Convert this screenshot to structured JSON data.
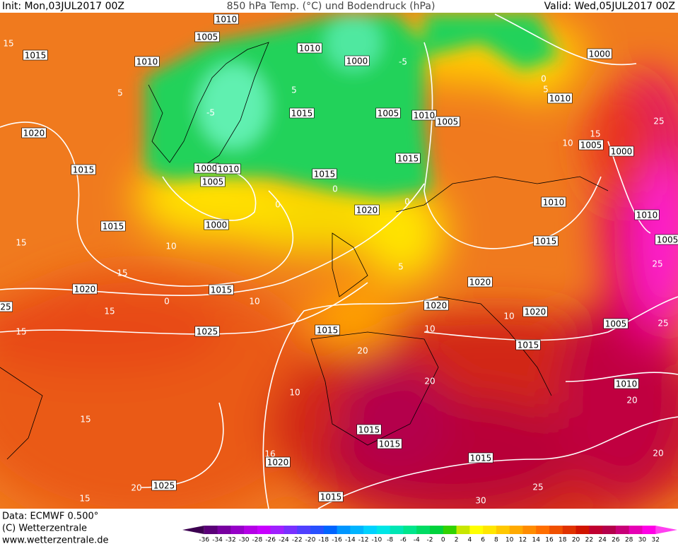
{
  "header": {
    "init": "Init: Mon,03JUL2017 00Z",
    "title": "850 hPa Temp. (°C) und Bodendruck (hPa)",
    "valid": "Valid: Wed,05JUL2017 00Z"
  },
  "footer": {
    "data": "Data: ECMWF  0.500°",
    "copyright": "(C) Wetterzentrale",
    "website": "www.wetterzentrale.de"
  },
  "isobar_labels": [
    "1010",
    "1005",
    "1015",
    "1010",
    "1010",
    "1000",
    "1000",
    "1010",
    "1020",
    "1015",
    "1005",
    "1010",
    "1005",
    "1005",
    "1000",
    "1015",
    "1000",
    "1010",
    "1005",
    "1015",
    "1015",
    "1010",
    "1020",
    "1015",
    "1000",
    "1010",
    "1005",
    "1015",
    "1020",
    "1015",
    "1020",
    "1020",
    "1020",
    "25",
    "1005",
    "1025",
    "1015",
    "1015",
    "1010",
    "1015",
    "1015",
    "1015",
    "1020",
    "1025",
    "1015"
  ],
  "isotherm_labels": [
    "15",
    "5",
    "-5",
    "5",
    "0",
    "5",
    "-5",
    "15",
    "10",
    "25",
    "0",
    "0",
    "0",
    "10",
    "15",
    "15",
    "0",
    "15",
    "15",
    "10",
    "5",
    "10",
    "20",
    "20",
    "20",
    "15",
    "16",
    "20",
    "15",
    "25",
    "30",
    "20",
    "25",
    "25",
    "10",
    "10"
  ],
  "colorbar": {
    "labels": [
      "-36",
      "-34",
      "-32",
      "-30",
      "-28",
      "-26",
      "-24",
      "-22",
      "-20",
      "-18",
      "-16",
      "-14",
      "-12",
      "-10",
      "-8",
      "-6",
      "-4",
      "-2",
      "0",
      "2",
      "4",
      "6",
      "8",
      "10",
      "12",
      "14",
      "16",
      "18",
      "20",
      "22",
      "24",
      "26",
      "28",
      "30",
      "32"
    ],
    "colors": [
      "#3c0050",
      "#5a0078",
      "#7800a0",
      "#9600c8",
      "#b400e6",
      "#c800ff",
      "#a020ff",
      "#7830ff",
      "#5040ff",
      "#2850ff",
      "#0064ff",
      "#0096ff",
      "#00b4ff",
      "#00d2ff",
      "#00e6e6",
      "#00e6b4",
      "#00e68c",
      "#00dc64",
      "#00d23c",
      "#32d200",
      "#c8e600",
      "#ffff00",
      "#ffe600",
      "#ffc800",
      "#ffaa00",
      "#ff8c00",
      "#ff6e00",
      "#f05000",
      "#e03200",
      "#d01400",
      "#c00030",
      "#b4004b",
      "#c80078",
      "#e600b4",
      "#ff00e6",
      "#ff40f0"
    ]
  }
}
